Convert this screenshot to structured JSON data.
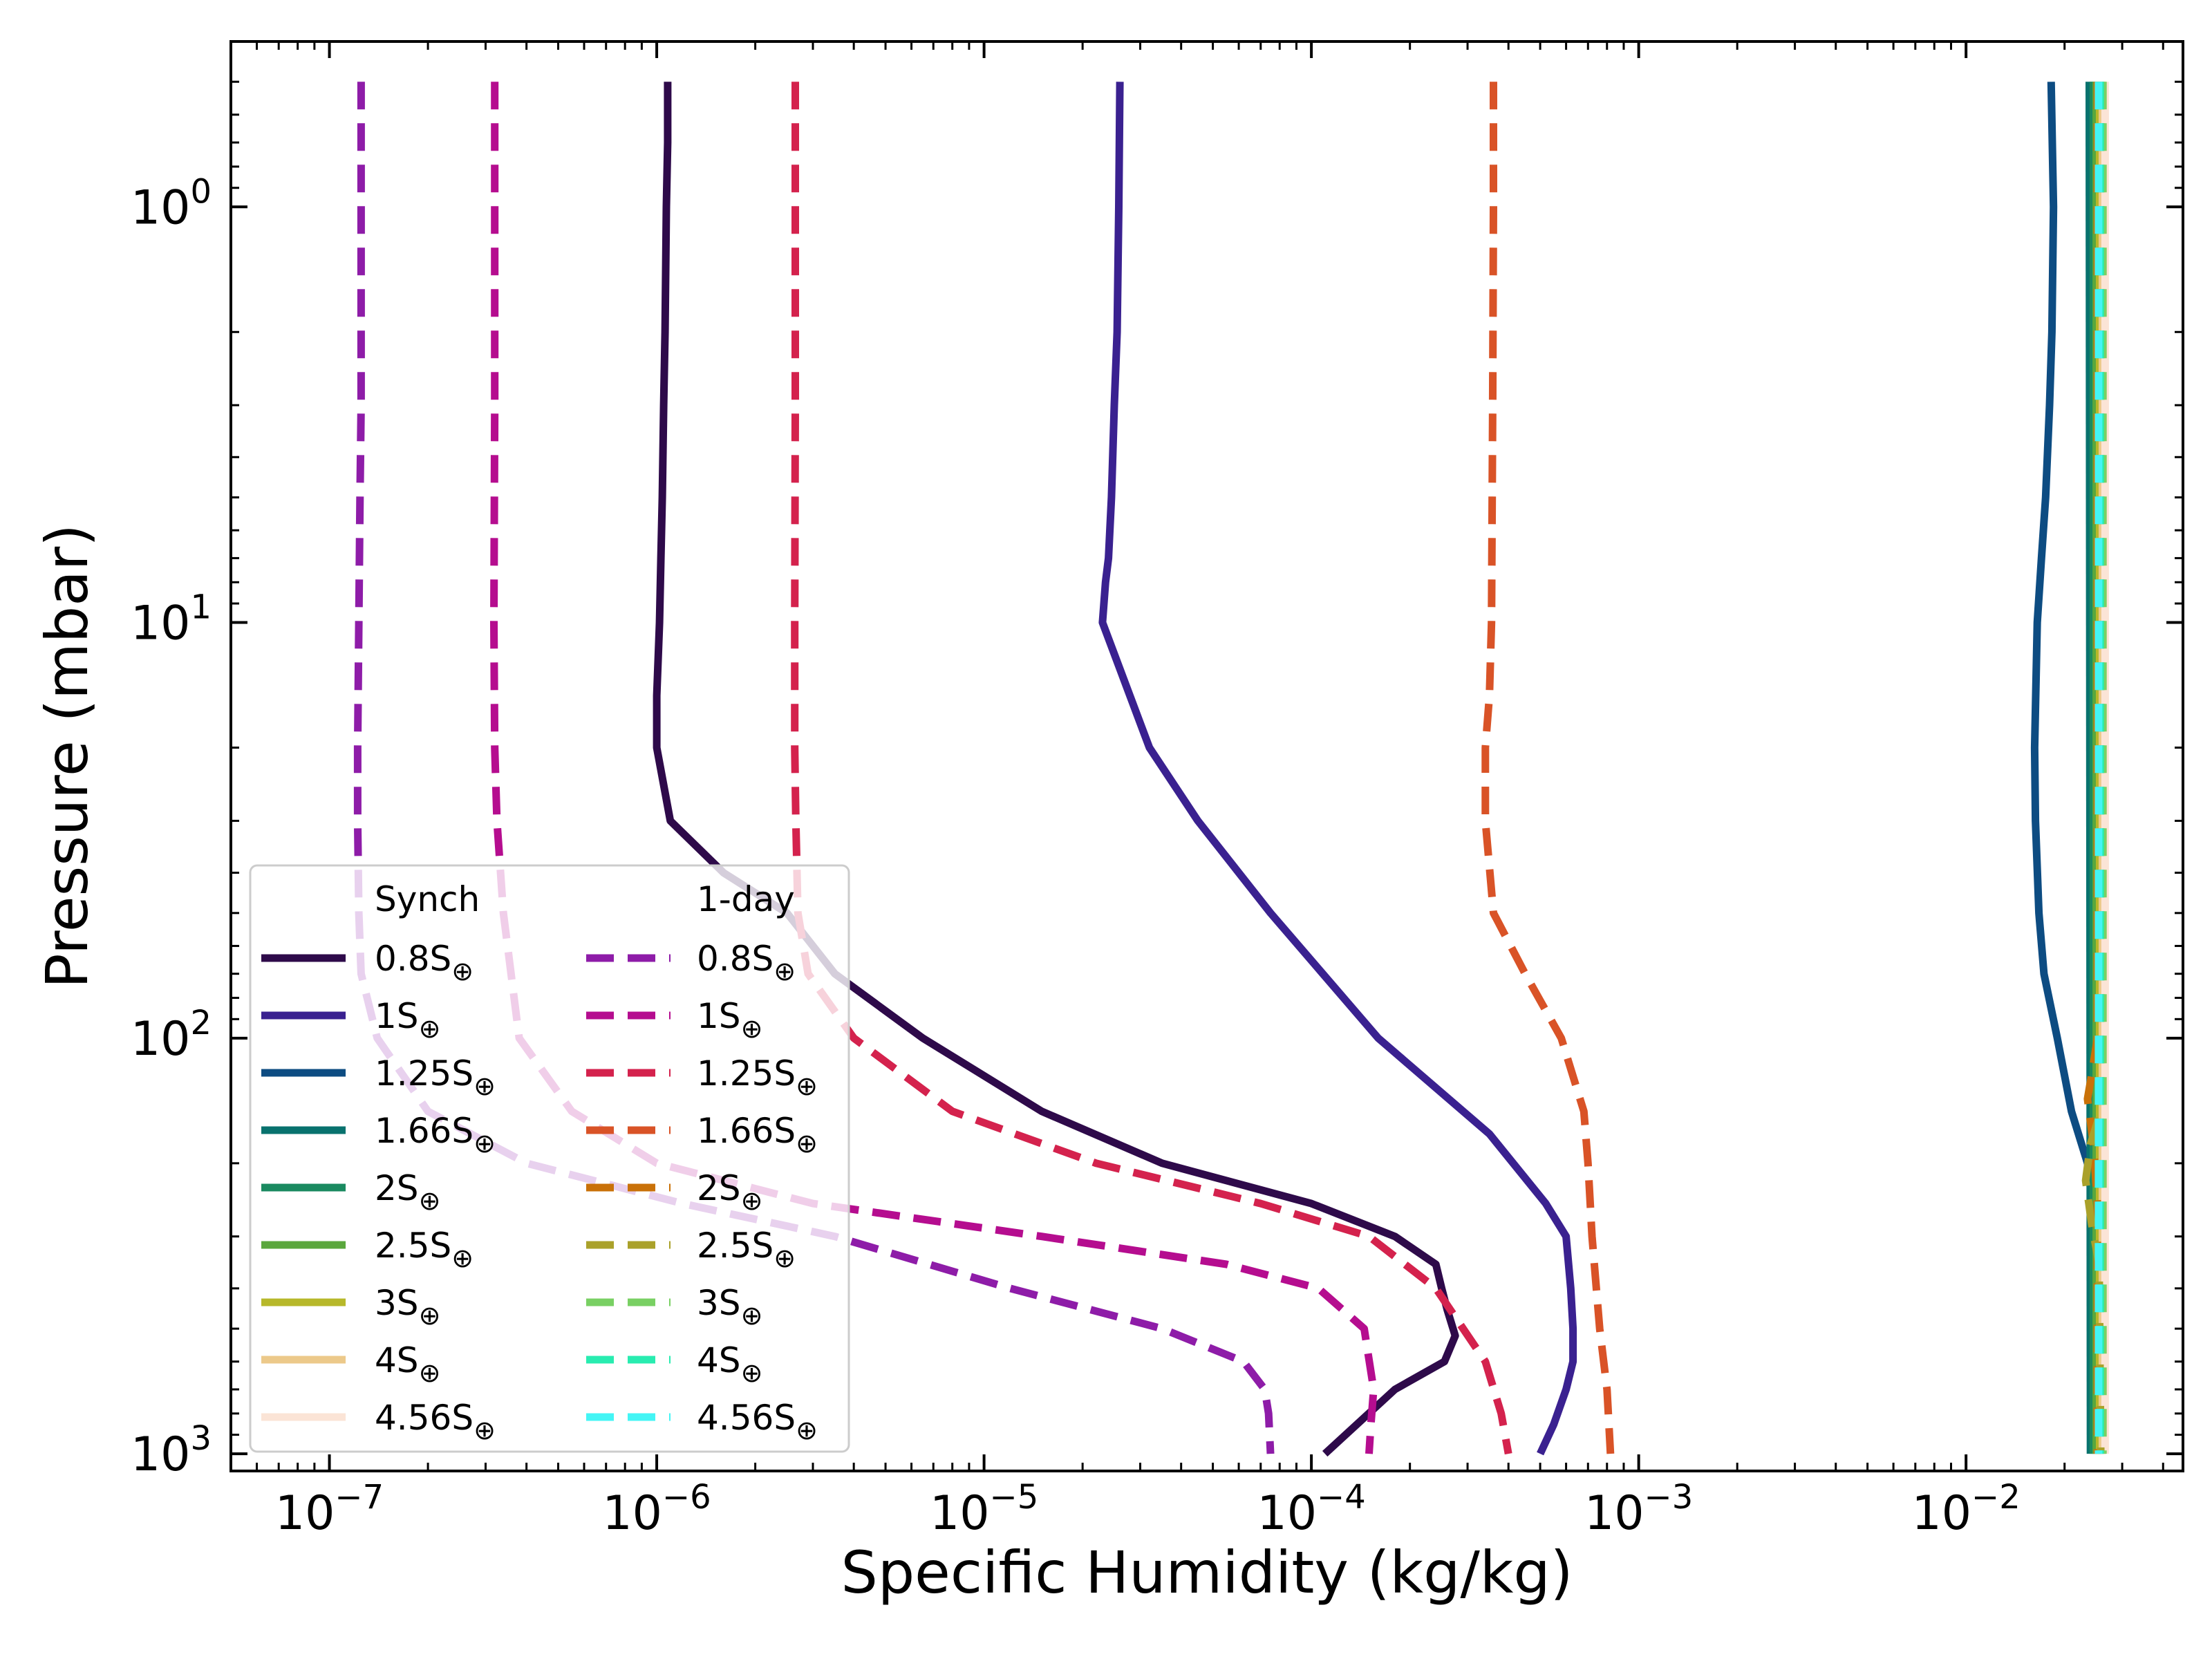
{
  "chart_data": {
    "type": "line",
    "title": "",
    "xlabel": "Specific Humidity (kg/kg)",
    "ylabel": "Pressure (mbar)",
    "xscale": "log",
    "yscale": "log",
    "y_inverted": true,
    "xlim": [
      5e-08,
      0.046
    ],
    "ylim": [
      1100,
      0.4
    ],
    "x_ticks": [
      {
        "value": 1e-07,
        "base": "10",
        "exp": "−7"
      },
      {
        "value": 1e-06,
        "base": "10",
        "exp": "−6"
      },
      {
        "value": 1e-05,
        "base": "10",
        "exp": "−5"
      },
      {
        "value": 0.0001,
        "base": "10",
        "exp": "−4"
      },
      {
        "value": 0.001,
        "base": "10",
        "exp": "−3"
      },
      {
        "value": 0.01,
        "base": "10",
        "exp": "−2"
      }
    ],
    "y_ticks": [
      {
        "value": 1,
        "base": "10",
        "exp": "0"
      },
      {
        "value": 10,
        "base": "10",
        "exp": "1"
      },
      {
        "value": 100,
        "base": "10",
        "exp": "2"
      },
      {
        "value": 1000,
        "base": "10",
        "exp": "3"
      }
    ],
    "legend": {
      "position": "lower-left",
      "group_titles": [
        "Synch",
        "1-day"
      ]
    },
    "series": [
      {
        "name": "0.8S⊕",
        "group": "Synch",
        "color": "#2e0a4a",
        "dash": "solid",
        "x": [
          1.08e-06,
          1.08e-06,
          1.07e-06,
          1.06e-06,
          1.05e-06,
          1.04e-06,
          1.03e-06,
          1.02e-06,
          1e-06,
          1e-06,
          1.1e-06,
          1.6e-06,
          2.5e-06,
          3.5e-06,
          6.5e-06,
          1.5e-05,
          3.5e-05,
          0.0001,
          0.00018,
          0.00024,
          0.00025,
          0.00026,
          0.000275,
          0.000255,
          0.00018,
          0.00011
        ],
        "y": [
          0.5,
          0.7,
          1,
          2,
          3,
          5,
          7,
          10,
          15,
          20,
          30,
          40,
          50,
          70,
          100,
          150,
          200,
          250,
          300,
          350,
          400,
          450,
          520,
          600,
          700,
          1000
        ]
      },
      {
        "name": "1S⊕",
        "group": "Synch",
        "color": "#3a2190",
        "dash": "solid",
        "x": [
          2.6e-05,
          2.58e-05,
          2.55e-05,
          2.5e-05,
          2.45e-05,
          2.4e-05,
          2.35e-05,
          2.3e-05,
          3.2e-05,
          4.5e-05,
          7.5e-05,
          0.00016,
          0.00035,
          0.00052,
          0.0006,
          0.00062,
          0.00063,
          0.00063,
          0.0006,
          0.00055,
          0.0005
        ],
        "y": [
          0.5,
          1,
          2,
          3,
          5,
          7,
          8,
          10,
          20,
          30,
          50,
          100,
          170,
          250,
          300,
          400,
          500,
          600,
          700,
          850,
          1000
        ]
      },
      {
        "name": "1.25S⊕",
        "group": "Synch",
        "color": "#0d4c82",
        "dash": "solid",
        "x": [
          0.0182,
          0.0185,
          0.0183,
          0.018,
          0.0175,
          0.017,
          0.0165,
          0.0162,
          0.0163,
          0.0167,
          0.0173,
          0.019,
          0.021,
          0.0235,
          0.025,
          0.026,
          0.026,
          0.026,
          0.026,
          0.026,
          0.026,
          0.026
        ],
        "y": [
          0.5,
          1,
          2,
          3,
          5,
          7,
          10,
          20,
          30,
          50,
          70,
          100,
          150,
          200,
          300,
          400,
          500,
          600,
          700,
          800,
          900,
          1000
        ]
      },
      {
        "name": "1.66S⊕",
        "group": "Synch",
        "color": "#08726e",
        "dash": "solid",
        "x": [
          0.0238,
          0.024
        ],
        "y": [
          0.5,
          1000
        ]
      },
      {
        "name": "2S⊕",
        "group": "Synch",
        "color": "#1a8a60",
        "dash": "solid",
        "x": [
          0.0245,
          0.0245
        ],
        "y": [
          0.5,
          1000
        ]
      },
      {
        "name": "2.5S⊕",
        "group": "Synch",
        "color": "#5aa73d",
        "dash": "solid",
        "x": [
          0.025,
          0.025
        ],
        "y": [
          0.5,
          1000
        ]
      },
      {
        "name": "3S⊕",
        "group": "Synch",
        "color": "#b7b82a",
        "dash": "solid",
        "x": [
          0.0256,
          0.0256
        ],
        "y": [
          0.5,
          1000
        ]
      },
      {
        "name": "4S⊕",
        "group": "Synch",
        "color": "#ecc98a",
        "dash": "solid",
        "x": [
          0.0261,
          0.0261
        ],
        "y": [
          0.5,
          1000
        ]
      },
      {
        "name": "4.56S⊕",
        "group": "Synch",
        "color": "#fbe4d6",
        "dash": "solid",
        "x": [
          0.0266,
          0.0266
        ],
        "y": [
          0.5,
          1000
        ]
      },
      {
        "name": "0.8S⊕",
        "group": "1-day",
        "color": "#8e1ca8",
        "dash": "dashed",
        "x": [
          1.25e-07,
          1.25e-07,
          1.25e-07,
          1.24e-07,
          1.23e-07,
          1.22e-07,
          1.22e-07,
          1.23e-07,
          1.25e-07,
          1.4e-07,
          2e-07,
          4e-07,
          1.2e-06,
          3.5e-06,
          1.2e-05,
          3.5e-05,
          6.2e-05,
          7.2e-05,
          7.4e-05,
          7.5e-05
        ],
        "y": [
          0.5,
          1,
          3,
          5,
          10,
          20,
          30,
          50,
          70,
          100,
          150,
          200,
          250,
          300,
          400,
          500,
          600,
          700,
          800,
          1000
        ]
      },
      {
        "name": "1S⊕",
        "group": "1-day",
        "color": "#b50d8f",
        "dash": "dashed",
        "x": [
          3.2e-07,
          3.2e-07,
          3.2e-07,
          3.18e-07,
          3.2e-07,
          3.25e-07,
          3.4e-07,
          3.8e-07,
          5.5e-07,
          1e-06,
          3e-06,
          1.5e-05,
          5.5e-05,
          0.000105,
          0.000145,
          0.000155,
          0.000152,
          0.00015
        ],
        "y": [
          0.5,
          1,
          3,
          10,
          20,
          30,
          50,
          100,
          150,
          200,
          250,
          300,
          350,
          400,
          500,
          700,
          850,
          1000
        ]
      },
      {
        "name": "1.25S⊕",
        "group": "1-day",
        "color": "#d4224d",
        "dash": "dashed",
        "x": [
          2.65e-06,
          2.65e-06,
          2.65e-06,
          2.64e-06,
          2.64e-06,
          2.66e-06,
          2.7e-06,
          2.9e-06,
          4e-06,
          8e-06,
          2.2e-05,
          7e-05,
          0.00015,
          0.00024,
          0.00034,
          0.00038,
          0.0004
        ],
        "y": [
          0.5,
          1,
          3,
          10,
          20,
          30,
          50,
          70,
          100,
          150,
          200,
          250,
          300,
          400,
          600,
          800,
          1000
        ]
      },
      {
        "name": "1.66S⊕",
        "group": "1-day",
        "color": "#d95327",
        "dash": "dashed",
        "x": [
          0.00036,
          0.00036,
          0.000358,
          0.000355,
          0.00035,
          0.00034,
          0.00034,
          0.00036,
          0.00045,
          0.00058,
          0.00068,
          0.0007,
          0.00072,
          0.00076,
          0.0008,
          0.00082
        ],
        "y": [
          0.5,
          1,
          3,
          10,
          15,
          20,
          30,
          50,
          70,
          100,
          150,
          200,
          300,
          500,
          700,
          1000
        ]
      },
      {
        "name": "2S⊕",
        "group": "1-day",
        "color": "#c97108",
        "dash": "dashed",
        "x": [
          0.0252,
          0.0252,
          0.0243,
          0.0235,
          0.0245,
          0.0252,
          0.0252
        ],
        "y": [
          0.5,
          100,
          120,
          140,
          180,
          250,
          1000
        ]
      },
      {
        "name": "2.5S⊕",
        "group": "1-day",
        "color": "#aaa12a",
        "dash": "dashed",
        "x": [
          0.0258,
          0.0258,
          0.024,
          0.0232,
          0.0242,
          0.0255,
          0.0258
        ],
        "y": [
          0.5,
          150,
          180,
          220,
          280,
          350,
          1000
        ]
      },
      {
        "name": "3S⊕",
        "group": "1-day",
        "color": "#79d063",
        "dash": "dashed",
        "x": [
          0.0262,
          0.0262
        ],
        "y": [
          0.5,
          1000
        ]
      },
      {
        "name": "4S⊕",
        "group": "1-day",
        "color": "#28ecb0",
        "dash": "dashed",
        "x": [
          0.0257,
          0.0257
        ],
        "y": [
          0.5,
          1000
        ]
      },
      {
        "name": "4.56S⊕",
        "group": "1-day",
        "color": "#44f5f5",
        "dash": "dashed",
        "x": [
          0.0254,
          0.0254
        ],
        "y": [
          0.5,
          1000
        ]
      }
    ]
  }
}
